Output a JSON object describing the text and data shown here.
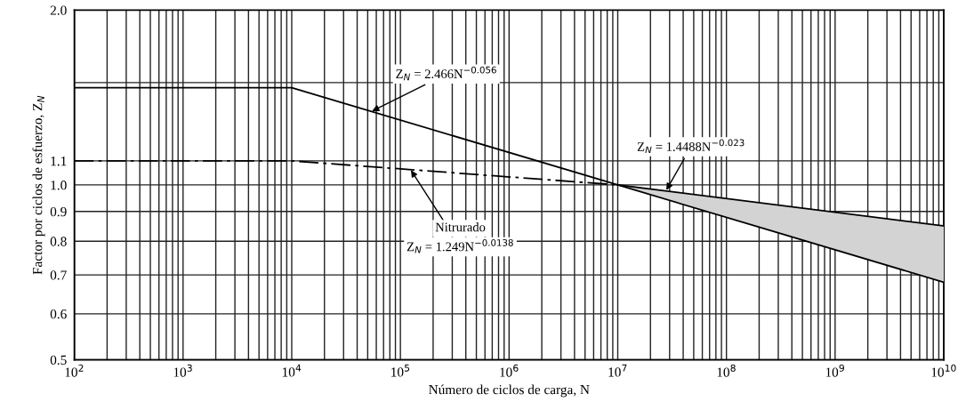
{
  "chart_data": {
    "type": "line",
    "xlabel": "Número de ciclos de carga, N",
    "ylabel": "Factor por ciclos de esfuerzo, Z$_{N}$",
    "log": "xy",
    "grid": true,
    "marker": "none",
    "xlim": [
      100,
      10000000000
    ],
    "ylim": [
      0.5,
      2.0
    ],
    "xticks": [
      {
        "value": 100,
        "label": "10$^{2}$"
      },
      {
        "value": 200,
        "label": null
      },
      {
        "value": 300,
        "label": null
      },
      {
        "value": 400,
        "label": null
      },
      {
        "value": 500,
        "label": null
      },
      {
        "value": 600,
        "label": null
      },
      {
        "value": 700,
        "label": null
      },
      {
        "value": 800,
        "label": null
      },
      {
        "value": 900,
        "label": null
      },
      {
        "value": 1000,
        "label": "10$^{3}$"
      },
      {
        "value": 2000,
        "label": null
      },
      {
        "value": 3000,
        "label": null
      },
      {
        "value": 4000,
        "label": null
      },
      {
        "value": 5000,
        "label": null
      },
      {
        "value": 6000,
        "label": null
      },
      {
        "value": 7000,
        "label": null
      },
      {
        "value": 8000,
        "label": null
      },
      {
        "value": 9000,
        "label": null
      },
      {
        "value": 10000,
        "label": "10$^{4}$"
      },
      {
        "value": 20000,
        "label": null
      },
      {
        "value": 30000,
        "label": null
      },
      {
        "value": 40000,
        "label": null
      },
      {
        "value": 50000,
        "label": null
      },
      {
        "value": 60000,
        "label": null
      },
      {
        "value": 70000,
        "label": null
      },
      {
        "value": 80000,
        "label": null
      },
      {
        "value": 90000,
        "label": null
      },
      {
        "value": 100000,
        "label": "10$^{5}$"
      },
      {
        "value": 200000,
        "label": null
      },
      {
        "value": 300000,
        "label": null
      },
      {
        "value": 400000,
        "label": null
      },
      {
        "value": 500000,
        "label": null
      },
      {
        "value": 600000,
        "label": null
      },
      {
        "value": 700000,
        "label": null
      },
      {
        "value": 800000,
        "label": null
      },
      {
        "value": 900000,
        "label": null
      },
      {
        "value": 1000000,
        "label": "10$^{6}$"
      },
      {
        "value": 2000000,
        "label": null
      },
      {
        "value": 3000000,
        "label": null
      },
      {
        "value": 4000000,
        "label": null
      },
      {
        "value": 5000000,
        "label": null
      },
      {
        "value": 6000000,
        "label": null
      },
      {
        "value": 7000000,
        "label": null
      },
      {
        "value": 8000000,
        "label": null
      },
      {
        "value": 9000000,
        "label": null
      },
      {
        "value": 10000000,
        "label": "10$^{7}$"
      },
      {
        "value": 20000000,
        "label": null
      },
      {
        "value": 30000000,
        "label": null
      },
      {
        "value": 40000000,
        "label": null
      },
      {
        "value": 50000000,
        "label": null
      },
      {
        "value": 60000000,
        "label": null
      },
      {
        "value": 70000000,
        "label": null
      },
      {
        "value": 80000000,
        "label": null
      },
      {
        "value": 90000000,
        "label": null
      },
      {
        "value": 100000000,
        "label": "10$^{8}$"
      },
      {
        "value": 200000000,
        "label": null
      },
      {
        "value": 300000000,
        "label": null
      },
      {
        "value": 400000000,
        "label": null
      },
      {
        "value": 500000000,
        "label": null
      },
      {
        "value": 600000000,
        "label": null
      },
      {
        "value": 700000000,
        "label": null
      },
      {
        "value": 800000000,
        "label": null
      },
      {
        "value": 900000000,
        "label": null
      },
      {
        "value": 1000000000,
        "label": "10$^{9}$"
      },
      {
        "value": 2000000000,
        "label": null
      },
      {
        "value": 3000000000,
        "label": null
      },
      {
        "value": 4000000000,
        "label": null
      },
      {
        "value": 5000000000,
        "label": null
      },
      {
        "value": 6000000000,
        "label": null
      },
      {
        "value": 7000000000,
        "label": null
      },
      {
        "value": 8000000000,
        "label": null
      },
      {
        "value": 9000000000,
        "label": null
      },
      {
        "value": 10000000000,
        "label": "10$^{10}$"
      }
    ],
    "yticks": [
      {
        "value": 0.5,
        "label": "0.5"
      },
      {
        "value": 0.6,
        "label": "0.6"
      },
      {
        "value": 0.7,
        "label": "0.7"
      },
      {
        "value": 0.8,
        "label": "0.8"
      },
      {
        "value": 0.9,
        "label": "0.9"
      },
      {
        "value": 1.0,
        "label": "1.0"
      },
      {
        "value": 1.1,
        "label": "1.1"
      },
      {
        "value": 1.5,
        "label": null
      },
      {
        "value": 2.0,
        "label": "2.0"
      }
    ],
    "series": [
      {
        "color": "#000000",
        "line_style": "solid",
        "x": [
          100,
          10000,
          10000000,
          10000000000
        ],
        "values": [
          1.47,
          1.47,
          1.0,
          0.68
        ]
      },
      {
        "name": "Nitrurado",
        "color": "#000000",
        "line_style": "dashed",
        "x": [
          100,
          10000,
          10000000
        ],
        "values": [
          1.1,
          1.1,
          1.0
        ]
      },
      {
        "color": "#000000",
        "line_style": "solid",
        "x": [
          10000000,
          10000000000
        ],
        "values": [
          1.0,
          0.85
        ],
        "lower": [
          1.0,
          0.68
        ],
        "upper": [
          1.0,
          0.85
        ]
      }
    ],
    "annotations": [
      {
        "text": "Z$_{N}$ = 2.466N$^{−0.056}$",
        "x": 55000,
        "y": 1.34
      },
      {
        "text": "Z$_{N}$ = 1.249N$^{−0.0138}$",
        "x": 125000,
        "y": 1.06
      },
      {
        "text": "Z$_{N}$ = 1.4488N$^{−0.023}$",
        "x": 28000000,
        "y": 0.98
      }
    ]
  }
}
